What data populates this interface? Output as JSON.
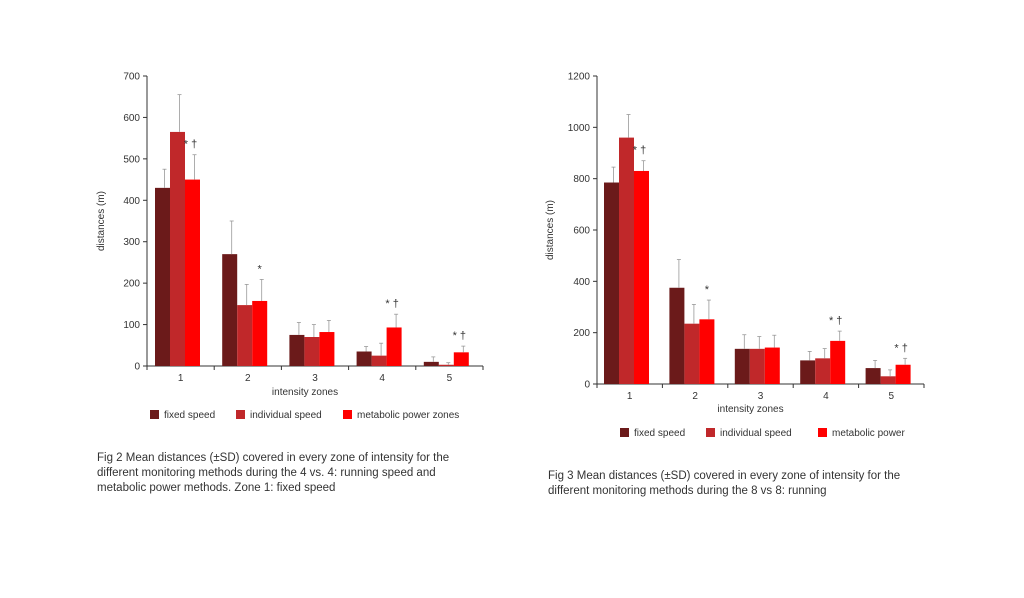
{
  "chart_data": [
    {
      "type": "bar",
      "xlabel": "intensity zones",
      "ylabel": "distances (m)",
      "ylim": [
        0,
        700
      ],
      "yticks": [
        0,
        100,
        200,
        300,
        400,
        500,
        600,
        700
      ],
      "categories": [
        "1",
        "2",
        "3",
        "4",
        "5"
      ],
      "series": [
        {
          "name": "fixed speed",
          "color": "#6b1a1a",
          "values": [
            430,
            270,
            75,
            35,
            10
          ],
          "errors": [
            45,
            80,
            30,
            12,
            12
          ]
        },
        {
          "name": "individual speed",
          "color": "#c0282a",
          "values": [
            565,
            147,
            70,
            25,
            3
          ],
          "errors": [
            90,
            50,
            30,
            30,
            5
          ]
        },
        {
          "name": "metabolic power zones",
          "color": "#ff0000",
          "values": [
            450,
            157,
            82,
            93,
            33
          ],
          "errors": [
            60,
            52,
            28,
            32,
            15
          ]
        }
      ],
      "annotations": [
        "* †",
        "*",
        "",
        "* †",
        "* †"
      ],
      "legend_position": "bottom",
      "grid": false
    },
    {
      "type": "bar",
      "xlabel": "intensity zones",
      "ylabel": "distances (m)",
      "ylim": [
        0,
        1200
      ],
      "yticks": [
        0,
        200,
        400,
        600,
        800,
        1000,
        1200
      ],
      "categories": [
        "1",
        "2",
        "3",
        "4",
        "5"
      ],
      "series": [
        {
          "name": "fixed speed",
          "color": "#6b1a1a",
          "values": [
            785,
            375,
            137,
            92,
            62
          ],
          "errors": [
            60,
            110,
            55,
            35,
            30
          ]
        },
        {
          "name": "individual speed",
          "color": "#c0282a",
          "values": [
            960,
            235,
            137,
            100,
            30
          ],
          "errors": [
            90,
            75,
            48,
            38,
            25
          ]
        },
        {
          "name": "metabolic power",
          "color": "#ff0000",
          "values": [
            830,
            252,
            142,
            168,
            75
          ],
          "errors": [
            40,
            75,
            48,
            38,
            25
          ]
        }
      ],
      "annotations": [
        "* †",
        "*",
        "",
        "* †",
        "* †"
      ],
      "legend_position": "bottom",
      "grid": false
    }
  ],
  "captions": [
    "Fig 2 Mean distances (±SD) covered in every zone of intensity for the different monitoring methods during the 4 vs. 4: running speed and metabolic power methods. Zone 1: fixed speed",
    "Fig 3 Mean distances (±SD) covered in every zone of intensity for the different monitoring methods during the 8 vs 8: running"
  ]
}
